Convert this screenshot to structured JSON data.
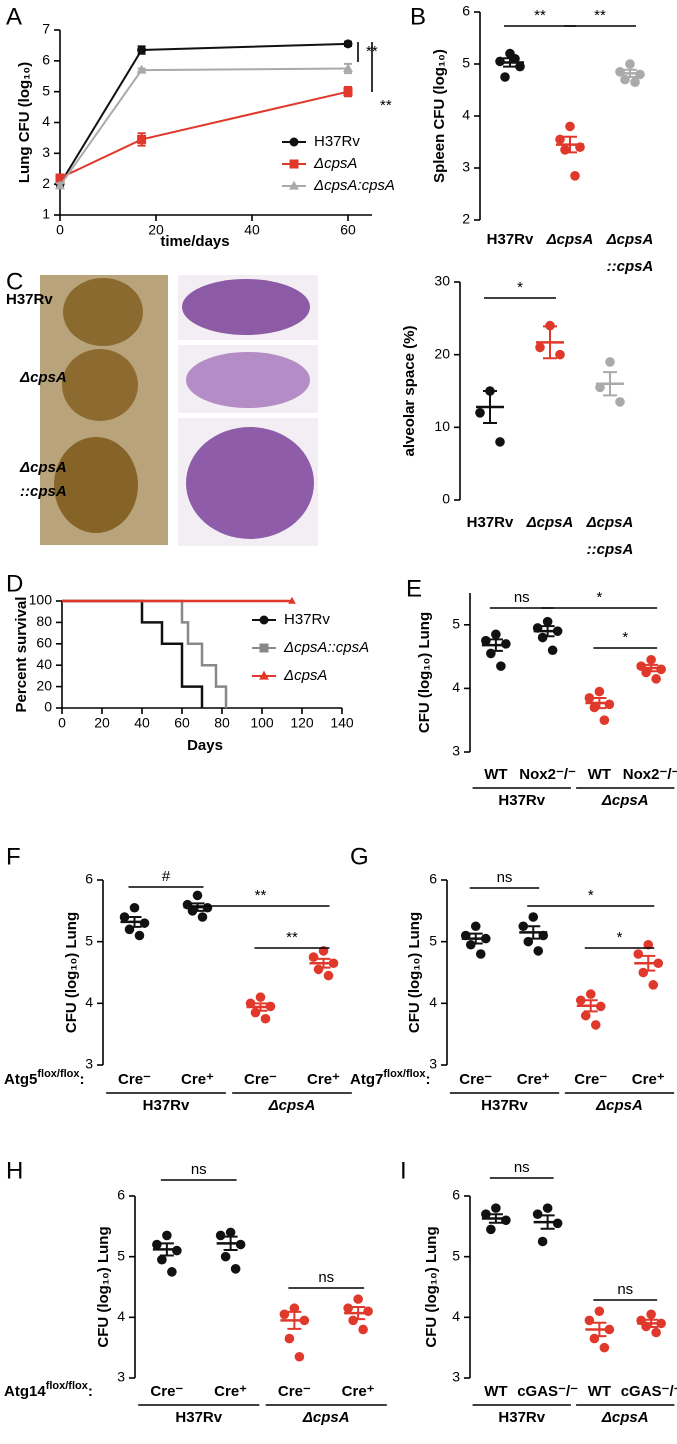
{
  "images": {
    "rows": [
      [
        "H37Rv"
      ],
      [
        "ΔcpsA"
      ],
      [
        "ΔcpsA",
        "::cpsA"
      ]
    ]
  },
  "chart_data": [
    {
      "type": "line",
      "panel": "A",
      "ylabel": "Lung CFU (log₁₀)",
      "xlabel": "time/days",
      "x": [
        0,
        17,
        60
      ],
      "xlim": [
        0,
        65
      ],
      "xticks": [
        0,
        20,
        40,
        60
      ],
      "ylim": [
        1,
        7
      ],
      "yticks": [
        1,
        2,
        3,
        4,
        5,
        6,
        7
      ],
      "series": [
        {
          "name": "H37Rv",
          "color": "#111111",
          "marker": "circle",
          "values": [
            2.0,
            6.35,
            6.55
          ],
          "errors": [
            0.1,
            0.12,
            0.07
          ]
        },
        {
          "name": "ΔcpsA",
          "color": "#e0382a",
          "marker": "square",
          "values": [
            2.2,
            3.45,
            5.0
          ],
          "errors": [
            0.08,
            0.2,
            0.15
          ]
        },
        {
          "name": "ΔcpsA:cpsA",
          "color": "#aaaaaa",
          "marker": "triangle",
          "values": [
            1.95,
            5.7,
            5.75
          ],
          "errors": [
            0.08,
            0.05,
            0.15
          ]
        }
      ],
      "annotations": [
        "**",
        "**"
      ]
    },
    {
      "type": "dot",
      "panel": "B",
      "ylabel": "Spleen CFU (log₁₀)",
      "ylim": [
        2,
        6
      ],
      "yticks": [
        2,
        3,
        4,
        5,
        6
      ],
      "categories": [
        {
          "label": [
            "H37Rv"
          ],
          "color": "#111111",
          "points": [
            5.2,
            5.05,
            4.95,
            4.75,
            5.1
          ],
          "mean": 5.03,
          "error": 0.08
        },
        {
          "label": [
            "ΔcpsA"
          ],
          "color": "#e0382a",
          "points": [
            3.8,
            3.55,
            3.4,
            3.35,
            2.85
          ],
          "mean": 3.45,
          "error": 0.15
        },
        {
          "label": [
            "ΔcpsA",
            "::cpsA"
          ],
          "color": "#aaaaaa",
          "points": [
            5.0,
            4.85,
            4.8,
            4.7,
            4.65
          ],
          "mean": 4.82,
          "error": 0.07
        }
      ],
      "annotations": [
        "**",
        "**"
      ]
    },
    {
      "type": "dot",
      "panel": "C",
      "ylabel": "alveolar space (%)",
      "ylim": [
        0,
        30
      ],
      "yticks": [
        0,
        10,
        20,
        30
      ],
      "categories": [
        {
          "label": [
            "H37Rv"
          ],
          "color": "#111111",
          "points": [
            15,
            12,
            8
          ],
          "mean": 12.8,
          "error": 2.2
        },
        {
          "label": [
            "ΔcpsA"
          ],
          "color": "#e0382a",
          "points": [
            24,
            21,
            20
          ],
          "mean": 21.7,
          "error": 2.2
        },
        {
          "label": [
            "ΔcpsA",
            "::cpsA"
          ],
          "color": "#aaaaaa",
          "points": [
            19,
            15.5,
            13.5
          ],
          "mean": 16,
          "error": 1.6
        }
      ],
      "annotations": [
        "*"
      ]
    },
    {
      "type": "step",
      "panel": "D",
      "ylabel": "Percent survival",
      "xlabel": "Days",
      "xlim": [
        0,
        140
      ],
      "xticks": [
        0,
        20,
        40,
        60,
        80,
        100,
        120,
        140
      ],
      "ylim": [
        0,
        100
      ],
      "yticks": [
        0,
        20,
        40,
        60,
        80,
        100
      ],
      "series": [
        {
          "name": "H37Rv",
          "color": "#111111",
          "marker": "circle",
          "x": [
            0,
            40,
            50,
            60,
            70
          ],
          "values": [
            100,
            80,
            60,
            20,
            0
          ]
        },
        {
          "name": "ΔcpsA::cpsA",
          "color": "#888888",
          "marker": "square",
          "x": [
            0,
            60,
            63,
            70,
            77,
            82
          ],
          "values": [
            100,
            80,
            60,
            40,
            20,
            0
          ]
        },
        {
          "name": "ΔcpsA",
          "color": "#e0382a",
          "marker": "triangle",
          "x": [
            0,
            115
          ],
          "values": [
            100,
            100
          ]
        }
      ]
    },
    {
      "type": "dot",
      "panel": "E",
      "ylabel": "CFU (log₁₀) Lung",
      "ylim": [
        3,
        5.5
      ],
      "yticks": [
        3,
        4,
        5
      ],
      "groups": [
        {
          "name": "H37Rv",
          "categories": [
            {
              "label": "WT",
              "color": "#111111",
              "points": [
                4.85,
                4.75,
                4.7,
                4.55,
                4.35
              ],
              "mean": 4.68,
              "error": 0.09
            },
            {
              "label": "Nox2⁻/⁻",
              "color": "#111111",
              "points": [
                5.05,
                4.95,
                4.9,
                4.8,
                4.6
              ],
              "mean": 4.9,
              "error": 0.08
            }
          ]
        },
        {
          "name": "ΔcpsA",
          "categories": [
            {
              "label": "WT",
              "color": "#e0382a",
              "points": [
                3.95,
                3.85,
                3.75,
                3.7,
                3.5
              ],
              "mean": 3.77,
              "error": 0.08
            },
            {
              "label": "Nox2⁻/⁻",
              "color": "#e0382a",
              "points": [
                4.45,
                4.35,
                4.3,
                4.25,
                4.15
              ],
              "mean": 4.32,
              "error": 0.05
            }
          ]
        }
      ],
      "annotations": [
        "ns",
        "*",
        "*"
      ]
    },
    {
      "type": "dot",
      "panel": "F",
      "ylabel": "CFU (log₁₀) Lung",
      "ylim": [
        3,
        6
      ],
      "yticks": [
        3,
        4,
        5,
        6
      ],
      "prefix": {
        "base": "Atg5",
        "sup": "flox/flox",
        "tail": ":"
      },
      "groups": [
        {
          "name": "H37Rv",
          "categories": [
            {
              "label": "Cre⁻",
              "color": "#111111",
              "points": [
                5.55,
                5.4,
                5.3,
                5.2,
                5.1
              ],
              "mean": 5.32,
              "error": 0.08
            },
            {
              "label": "Cre⁺",
              "color": "#111111",
              "points": [
                5.75,
                5.6,
                5.55,
                5.5,
                5.4
              ],
              "mean": 5.56,
              "error": 0.06
            }
          ]
        },
        {
          "name": "ΔcpsA",
          "categories": [
            {
              "label": "Cre⁻",
              "color": "#e0382a",
              "points": [
                4.1,
                4.0,
                3.95,
                3.85,
                3.75
              ],
              "mean": 3.94,
              "error": 0.06
            },
            {
              "label": "Cre⁺",
              "color": "#e0382a",
              "points": [
                4.85,
                4.75,
                4.65,
                4.55,
                4.45
              ],
              "mean": 4.65,
              "error": 0.07
            }
          ]
        }
      ],
      "annotations": [
        "#",
        "**",
        "**"
      ]
    },
    {
      "type": "dot",
      "panel": "G",
      "ylabel": "CFU (log₁₀) Lung",
      "ylim": [
        3,
        6
      ],
      "yticks": [
        3,
        4,
        5,
        6
      ],
      "prefix": {
        "base": "Atg7",
        "sup": "flox/flox",
        "tail": ":"
      },
      "groups": [
        {
          "name": "H37Rv",
          "categories": [
            {
              "label": "Cre⁻",
              "color": "#111111",
              "points": [
                5.25,
                5.1,
                5.05,
                4.95,
                4.8
              ],
              "mean": 5.05,
              "error": 0.08
            },
            {
              "label": "Cre⁺",
              "color": "#111111",
              "points": [
                5.4,
                5.25,
                5.1,
                5.0,
                4.85
              ],
              "mean": 5.15,
              "error": 0.1
            }
          ]
        },
        {
          "name": "ΔcpsA",
          "categories": [
            {
              "label": "Cre⁻",
              "color": "#e0382a",
              "points": [
                4.15,
                4.05,
                3.95,
                3.8,
                3.65
              ],
              "mean": 3.96,
              "error": 0.09
            },
            {
              "label": "Cre⁺",
              "color": "#e0382a",
              "points": [
                4.95,
                4.8,
                4.65,
                4.5,
                4.3
              ],
              "mean": 4.65,
              "error": 0.12
            }
          ]
        }
      ],
      "annotations": [
        "ns",
        "*",
        "*"
      ]
    },
    {
      "type": "dot",
      "panel": "H",
      "ylabel": "CFU (log₁₀) Lung",
      "ylim": [
        3,
        6
      ],
      "yticks": [
        3,
        4,
        5,
        6
      ],
      "prefix": {
        "base": "Atg14",
        "sup": "flox/flox",
        "tail": ":"
      },
      "groups": [
        {
          "name": "H37Rv",
          "categories": [
            {
              "label": "Cre⁻",
              "color": "#111111",
              "points": [
                5.35,
                5.2,
                5.1,
                4.95,
                4.75
              ],
              "mean": 5.12,
              "error": 0.1
            },
            {
              "label": "Cre⁺",
              "color": "#111111",
              "points": [
                5.4,
                5.35,
                5.2,
                5.0,
                4.8
              ],
              "mean": 5.22,
              "error": 0.11
            }
          ]
        },
        {
          "name": "ΔcpsA",
          "categories": [
            {
              "label": "Cre⁻",
              "color": "#e0382a",
              "points": [
                4.15,
                4.05,
                3.95,
                3.65,
                3.35
              ],
              "mean": 3.95,
              "error": 0.14
            },
            {
              "label": "Cre⁺",
              "color": "#e0382a",
              "points": [
                4.3,
                4.15,
                4.1,
                3.95,
                3.8
              ],
              "mean": 4.07,
              "error": 0.1
            }
          ]
        }
      ],
      "annotations": [
        "ns",
        "ns"
      ]
    },
    {
      "type": "dot",
      "panel": "I",
      "ylabel": "CFU (log₁₀) Lung",
      "ylim": [
        3,
        6
      ],
      "yticks": [
        3,
        4,
        5,
        6
      ],
      "groups": [
        {
          "name": "H37Rv",
          "categories": [
            {
              "label": "WT",
              "color": "#111111",
              "points": [
                5.8,
                5.7,
                5.6,
                5.45
              ],
              "mean": 5.63,
              "error": 0.07
            },
            {
              "label": "cGAS⁻/⁻",
              "color": "#111111",
              "points": [
                5.8,
                5.7,
                5.55,
                5.25
              ],
              "mean": 5.57,
              "error": 0.11
            }
          ]
        },
        {
          "name": "ΔcpsA",
          "categories": [
            {
              "label": "WT",
              "color": "#e0382a",
              "points": [
                4.1,
                3.95,
                3.8,
                3.65,
                3.5
              ],
              "mean": 3.8,
              "error": 0.11
            },
            {
              "label": "cGAS⁻/⁻",
              "color": "#e0382a",
              "points": [
                4.05,
                3.95,
                3.9,
                3.85,
                3.75
              ],
              "mean": 3.9,
              "error": 0.06
            }
          ]
        }
      ],
      "annotations": [
        "ns",
        "ns"
      ]
    }
  ]
}
